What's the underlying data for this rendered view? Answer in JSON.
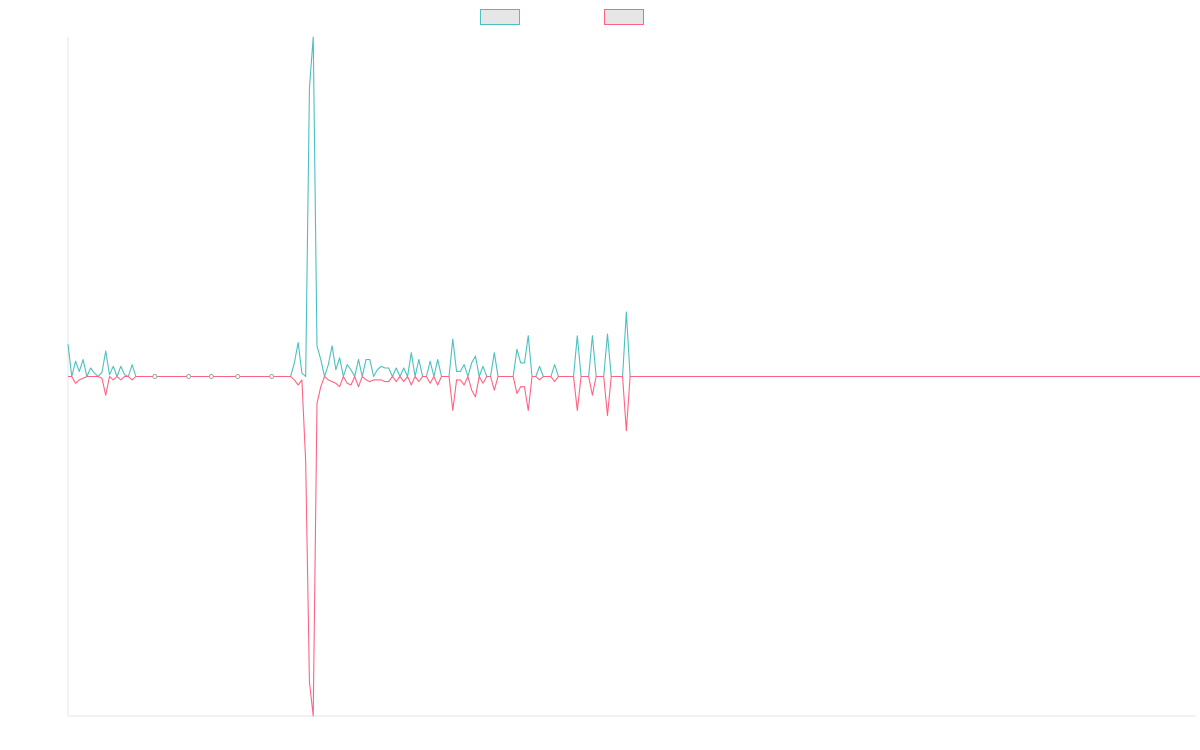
{
  "chart_data": {
    "type": "line",
    "title": "",
    "xlabel": "",
    "ylabel": "",
    "x_count": 300,
    "ylim": [
      -1,
      1
    ],
    "grid": false,
    "legend_position": "top-center",
    "series": [
      {
        "name": "",
        "color": "#4bc0c0",
        "fill": "#e6e6e6",
        "values": [
          0.095,
          0.0,
          0.045,
          0.015,
          0.05,
          0.0,
          0.025,
          0.01,
          0.0,
          0.012,
          0.075,
          0.005,
          0.03,
          0.0,
          0.03,
          0.005,
          0.0,
          0.035,
          0.0,
          0.0,
          0.0,
          0.0,
          0.0,
          0.0,
          0.0,
          0.0,
          0.0,
          0.0,
          0.0,
          0.0,
          0.0,
          0.0,
          0.0,
          0.0,
          0.0,
          0.0,
          0.0,
          0.0,
          0.0,
          0.0,
          0.0,
          0.0,
          0.0,
          0.0,
          0.0,
          0.0,
          0.0,
          0.0,
          0.0,
          0.0,
          0.0,
          0.0,
          0.0,
          0.0,
          0.0,
          0.0,
          0.0,
          0.0,
          0.0,
          0.0,
          0.04,
          0.1,
          0.01,
          0.0,
          0.85,
          1.0,
          0.09,
          0.05,
          0.0,
          0.035,
          0.09,
          0.02,
          0.055,
          0.0,
          0.035,
          0.02,
          0.0,
          0.05,
          0.0,
          0.05,
          0.05,
          0.0,
          0.02,
          0.03,
          0.025,
          0.025,
          0.0,
          0.025,
          0.0,
          0.025,
          0.0,
          0.07,
          0.0,
          0.05,
          0.0,
          0.0,
          0.045,
          0.0,
          0.05,
          0.0,
          0.0,
          0.0,
          0.11,
          0.015,
          0.015,
          0.035,
          0.0,
          0.04,
          0.06,
          0.0,
          0.03,
          0.0,
          0.0,
          0.07,
          0.0,
          0.0,
          0.0,
          0.0,
          0.0,
          0.08,
          0.04,
          0.04,
          0.12,
          0.0,
          0.0,
          0.03,
          0.0,
          0.0,
          0.0,
          0.035,
          0.0,
          0.0,
          0.0,
          0.0,
          0.0,
          0.12,
          0.0,
          0.0,
          0.0,
          0.12,
          0.0,
          0.0,
          0.0,
          0.125,
          0.0,
          0.0,
          0.0,
          0.0,
          0.19,
          0.0,
          0.0,
          0.0,
          0.0,
          0.0,
          0.0,
          0.0,
          0.0,
          0.0,
          0.0,
          0.0,
          0.0,
          0.0,
          0.0,
          0.0,
          0.0,
          0.0,
          0.0,
          0.0,
          0.0,
          0.0,
          0.0,
          0.0,
          0.0,
          0.0,
          0.0,
          0.0,
          0.0,
          0.0,
          0.0,
          0.0,
          0.0,
          0.0,
          0.0,
          0.0,
          0.0,
          0.0,
          0.0,
          0.0,
          0.0,
          0.0,
          0.0,
          0.0,
          0.0,
          0.0,
          0.0,
          0.0,
          0.0,
          0.0,
          0.0,
          0.0,
          0.0,
          0.0,
          0.0,
          0.0,
          0.0,
          0.0,
          0.0,
          0.0,
          0.0,
          0.0,
          0.0,
          0.0,
          0.0,
          0.0,
          0.0,
          0.0,
          0.0,
          0.0,
          0.0,
          0.0,
          0.0,
          0.0,
          0.0,
          0.0,
          0.0,
          0.0,
          0.0,
          0.0,
          0.0,
          0.0,
          0.0,
          0.0,
          0.0,
          0.0,
          0.0,
          0.0,
          0.0,
          0.0,
          0.0,
          0.0,
          0.0,
          0.0,
          0.0,
          0.0,
          0.0,
          0.0,
          0.0,
          0.0,
          0.0,
          0.0,
          0.0,
          0.0,
          0.0,
          0.0,
          0.0,
          0.0,
          0.0,
          0.0,
          0.0,
          0.0,
          0.0,
          0.0,
          0.0,
          0.0,
          0.0,
          0.0,
          0.0,
          0.0,
          0.0,
          0.0,
          0.0,
          0.0,
          0.0,
          0.0,
          0.0,
          0.0,
          0.0,
          0.0,
          0.0,
          0.0,
          0.0,
          0.0,
          0.0,
          0.0,
          0.0,
          0.0,
          0.0,
          0.0,
          0.0,
          0.0,
          0.0,
          0.0,
          0.0,
          0.0,
          0.0,
          0.0,
          0.0,
          0.0,
          0.0,
          0.0,
          0.0,
          0.0,
          0.0,
          0.0,
          0.0
        ]
      },
      {
        "name": "",
        "color": "#ff6384",
        "fill": "#e6e6e6",
        "values": [
          0.0,
          0.0,
          -0.02,
          -0.01,
          -0.005,
          0.0,
          0.0,
          0.0,
          0.0,
          -0.005,
          -0.055,
          0.0,
          -0.01,
          0.0,
          -0.01,
          0.0,
          0.0,
          -0.01,
          0.0,
          0.0,
          0.0,
          0.0,
          0.0,
          0.0,
          0.0,
          0.0,
          0.0,
          0.0,
          0.0,
          0.0,
          0.0,
          0.0,
          0.0,
          0.0,
          0.0,
          0.0,
          0.0,
          0.0,
          0.0,
          0.0,
          0.0,
          0.0,
          0.0,
          0.0,
          0.0,
          0.0,
          0.0,
          0.0,
          0.0,
          0.0,
          0.0,
          0.0,
          0.0,
          0.0,
          0.0,
          0.0,
          0.0,
          0.0,
          0.0,
          0.0,
          -0.01,
          -0.025,
          -0.01,
          -0.25,
          -0.9,
          -1.0,
          -0.08,
          -0.03,
          0.0,
          -0.01,
          -0.015,
          -0.02,
          -0.03,
          0.0,
          -0.02,
          -0.025,
          0.0,
          -0.03,
          0.0,
          -0.01,
          -0.015,
          -0.01,
          -0.01,
          -0.01,
          -0.015,
          -0.015,
          0.0,
          -0.015,
          0.0,
          -0.015,
          0.0,
          -0.025,
          0.0,
          -0.015,
          0.0,
          0.0,
          -0.02,
          0.0,
          -0.025,
          0.0,
          0.0,
          0.0,
          -0.1,
          -0.01,
          -0.01,
          -0.025,
          0.0,
          -0.04,
          -0.06,
          0.0,
          -0.02,
          0.0,
          0.0,
          -0.04,
          0.0,
          0.0,
          0.0,
          0.0,
          0.0,
          -0.05,
          -0.03,
          -0.03,
          -0.1,
          0.0,
          0.0,
          -0.01,
          0.0,
          0.0,
          0.0,
          -0.015,
          0.0,
          0.0,
          0.0,
          0.0,
          0.0,
          -0.1,
          0.0,
          0.0,
          0.0,
          -0.055,
          0.0,
          0.0,
          0.0,
          -0.115,
          0.0,
          0.0,
          0.0,
          0.0,
          -0.16,
          0.0,
          0.0,
          0.0,
          0.0,
          0.0,
          0.0,
          0.0,
          0.0,
          0.0,
          0.0,
          0.0,
          0.0,
          0.0,
          0.0,
          0.0,
          0.0,
          0.0,
          0.0,
          0.0,
          0.0,
          0.0,
          0.0,
          0.0,
          0.0,
          0.0,
          0.0,
          0.0,
          0.0,
          0.0,
          0.0,
          0.0,
          0.0,
          0.0,
          0.0,
          0.0,
          0.0,
          0.0,
          0.0,
          0.0,
          0.0,
          0.0,
          0.0,
          0.0,
          0.0,
          0.0,
          0.0,
          0.0,
          0.0,
          0.0,
          0.0,
          0.0,
          0.0,
          0.0,
          0.0,
          0.0,
          0.0,
          0.0,
          0.0,
          0.0,
          0.0,
          0.0,
          0.0,
          0.0,
          0.0,
          0.0,
          0.0,
          0.0,
          0.0,
          0.0,
          0.0,
          0.0,
          0.0,
          0.0,
          0.0,
          0.0,
          0.0,
          0.0,
          0.0,
          0.0,
          0.0,
          0.0,
          0.0,
          0.0,
          0.0,
          0.0,
          0.0,
          0.0,
          0.0,
          0.0,
          0.0,
          0.0,
          0.0,
          0.0,
          0.0,
          0.0,
          0.0,
          0.0,
          0.0,
          0.0,
          0.0,
          0.0,
          0.0,
          0.0,
          0.0,
          0.0,
          0.0,
          0.0,
          0.0,
          0.0,
          0.0,
          0.0,
          0.0,
          0.0,
          0.0,
          0.0,
          0.0,
          0.0,
          0.0,
          0.0,
          0.0,
          0.0,
          0.0,
          0.0,
          0.0,
          0.0,
          0.0,
          0.0,
          0.0,
          0.0,
          0.0,
          0.0,
          0.0,
          0.0,
          0.0,
          0.0,
          0.0,
          0.0,
          0.0,
          0.0,
          0.0,
          0.0,
          0.0,
          0.0,
          0.0,
          0.0,
          0.0,
          0.0,
          0.0,
          0.0,
          0.0,
          0.0,
          0.0,
          0.0,
          0.0,
          0.0,
          0.0,
          0.0
        ]
      }
    ],
    "point_markers_x_index": [
      23,
      32,
      38,
      45,
      54
    ]
  }
}
